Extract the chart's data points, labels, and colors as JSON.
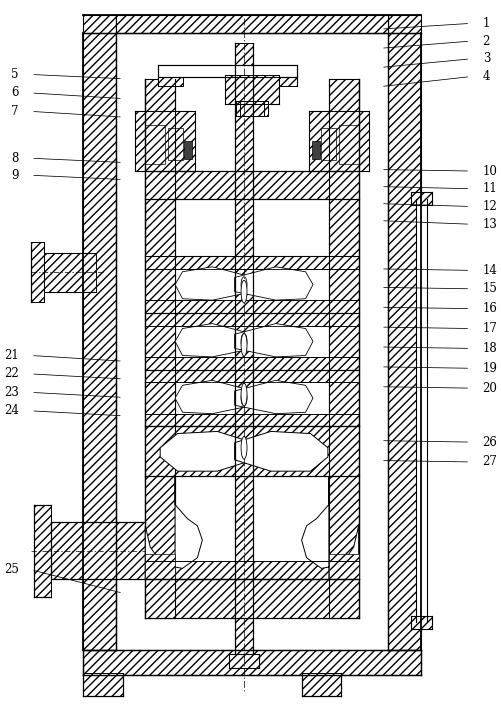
{
  "bg_color": "#ffffff",
  "line_color": "#000000",
  "fig_width": 5.02,
  "fig_height": 7.11,
  "dpi": 100,
  "labels_right": [
    {
      "num": "1",
      "xt": 0.965,
      "yt": 0.968,
      "xe": 0.76,
      "ye": 0.96
    },
    {
      "num": "2",
      "xt": 0.965,
      "yt": 0.943,
      "xe": 0.76,
      "ye": 0.933
    },
    {
      "num": "3",
      "xt": 0.965,
      "yt": 0.918,
      "xe": 0.76,
      "ye": 0.906
    },
    {
      "num": "4",
      "xt": 0.965,
      "yt": 0.893,
      "xe": 0.76,
      "ye": 0.879
    },
    {
      "num": "10",
      "xt": 0.965,
      "yt": 0.76,
      "xe": 0.76,
      "ye": 0.762
    },
    {
      "num": "11",
      "xt": 0.965,
      "yt": 0.735,
      "xe": 0.76,
      "ye": 0.738
    },
    {
      "num": "12",
      "xt": 0.965,
      "yt": 0.71,
      "xe": 0.76,
      "ye": 0.714
    },
    {
      "num": "13",
      "xt": 0.965,
      "yt": 0.685,
      "xe": 0.76,
      "ye": 0.69
    },
    {
      "num": "14",
      "xt": 0.965,
      "yt": 0.62,
      "xe": 0.76,
      "ye": 0.622
    },
    {
      "num": "15",
      "xt": 0.965,
      "yt": 0.594,
      "xe": 0.76,
      "ye": 0.596
    },
    {
      "num": "16",
      "xt": 0.965,
      "yt": 0.566,
      "xe": 0.76,
      "ye": 0.568
    },
    {
      "num": "17",
      "xt": 0.965,
      "yt": 0.538,
      "xe": 0.76,
      "ye": 0.54
    },
    {
      "num": "18",
      "xt": 0.965,
      "yt": 0.51,
      "xe": 0.76,
      "ye": 0.512
    },
    {
      "num": "19",
      "xt": 0.965,
      "yt": 0.482,
      "xe": 0.76,
      "ye": 0.484
    },
    {
      "num": "20",
      "xt": 0.965,
      "yt": 0.454,
      "xe": 0.76,
      "ye": 0.456
    },
    {
      "num": "26",
      "xt": 0.965,
      "yt": 0.378,
      "xe": 0.76,
      "ye": 0.38
    },
    {
      "num": "27",
      "xt": 0.965,
      "yt": 0.35,
      "xe": 0.76,
      "ye": 0.352
    }
  ],
  "labels_left": [
    {
      "num": "5",
      "xt": 0.03,
      "yt": 0.896,
      "xe": 0.24,
      "ye": 0.89
    },
    {
      "num": "6",
      "xt": 0.03,
      "yt": 0.87,
      "xe": 0.24,
      "ye": 0.862
    },
    {
      "num": "7",
      "xt": 0.03,
      "yt": 0.844,
      "xe": 0.24,
      "ye": 0.836
    },
    {
      "num": "8",
      "xt": 0.03,
      "yt": 0.778,
      "xe": 0.24,
      "ye": 0.772
    },
    {
      "num": "9",
      "xt": 0.03,
      "yt": 0.754,
      "xe": 0.24,
      "ye": 0.748
    },
    {
      "num": "21",
      "xt": 0.03,
      "yt": 0.5,
      "xe": 0.24,
      "ye": 0.492
    },
    {
      "num": "22",
      "xt": 0.03,
      "yt": 0.474,
      "xe": 0.24,
      "ye": 0.467
    },
    {
      "num": "23",
      "xt": 0.03,
      "yt": 0.448,
      "xe": 0.24,
      "ye": 0.441
    },
    {
      "num": "24",
      "xt": 0.03,
      "yt": 0.422,
      "xe": 0.24,
      "ye": 0.415
    },
    {
      "num": "25",
      "xt": 0.03,
      "yt": 0.198,
      "xe": 0.24,
      "ye": 0.165
    }
  ]
}
